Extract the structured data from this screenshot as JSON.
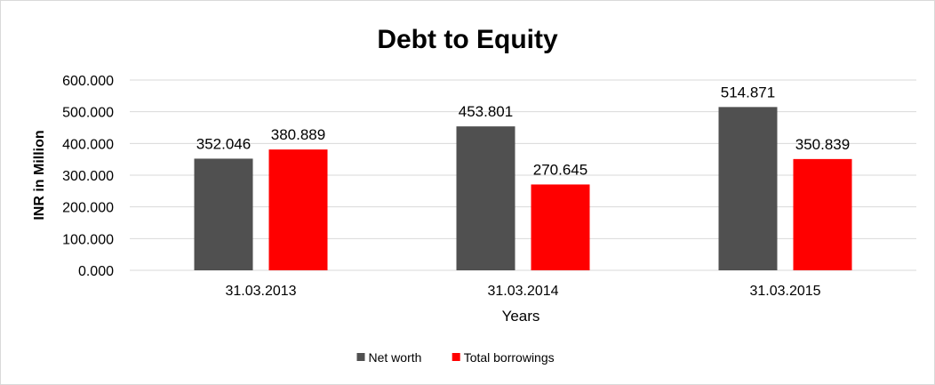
{
  "chart_data": {
    "type": "bar",
    "title": "Debt to Equity",
    "xlabel": "Years",
    "ylabel": "INR in Million",
    "categories": [
      "31.03.2013",
      "31.03.2014",
      "31.03.2015"
    ],
    "series": [
      {
        "name": "Net worth",
        "color": "#505050",
        "values": [
          352.046,
          453.801,
          514.871
        ]
      },
      {
        "name": "Total borrowings",
        "color": "#ff0000",
        "values": [
          380.889,
          270.645,
          350.839
        ]
      }
    ],
    "ylim": [
      0,
      600
    ],
    "ytick_step": 100,
    "ytick_decimals": 3,
    "data_label_decimals": 3,
    "grid": true,
    "gridline_color": "#d9d9d9",
    "legend_position": "bottom"
  }
}
